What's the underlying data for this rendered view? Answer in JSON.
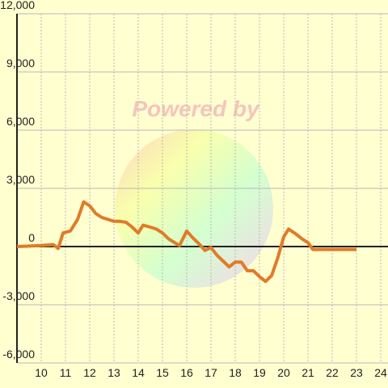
{
  "chart_data": {
    "type": "line",
    "watermark": "Powered by",
    "xlim": [
      9,
      24.3
    ],
    "ylim": [
      -6000,
      12000
    ],
    "xticks": [
      10,
      11,
      12,
      13,
      14,
      15,
      16,
      17,
      18,
      19,
      20,
      21,
      22,
      23,
      24
    ],
    "yticks": [
      {
        "value": -6000,
        "label": "-6,000"
      },
      {
        "value": -3000,
        "label": "-3,000"
      },
      0,
      {
        "value": 3000,
        "label": "3,000"
      },
      {
        "value": 6000,
        "label": "6,000"
      },
      {
        "value": 9000,
        "label": "9,000"
      },
      {
        "value": 12000,
        "label": "12,000"
      }
    ],
    "grid": true,
    "series": [
      {
        "color": "#e07b28",
        "x": [
          9.0,
          10.0,
          10.5,
          10.7,
          10.9,
          11.2,
          11.5,
          11.75,
          12.0,
          12.25,
          12.5,
          12.75,
          13.0,
          13.25,
          13.5,
          13.75,
          14.0,
          14.2,
          14.5,
          14.75,
          15.0,
          15.25,
          15.5,
          15.7,
          16.0,
          16.25,
          16.5,
          16.75,
          17.0,
          17.25,
          17.5,
          17.75,
          18.0,
          18.25,
          18.5,
          18.75,
          19.0,
          19.25,
          19.5,
          19.75,
          20.0,
          20.2,
          20.5,
          20.75,
          21.0,
          21.2,
          23.0
        ],
        "values": [
          0,
          50,
          100,
          -100,
          700,
          800,
          1400,
          2300,
          2100,
          1700,
          1500,
          1400,
          1300,
          1300,
          1250,
          1000,
          700,
          1100,
          1000,
          900,
          700,
          400,
          200,
          50,
          800,
          450,
          150,
          -200,
          -50,
          -450,
          -750,
          -1050,
          -800,
          -800,
          -1250,
          -1250,
          -1550,
          -1800,
          -1500,
          -600,
          500,
          900,
          650,
          400,
          200,
          -150,
          -150
        ]
      }
    ]
  }
}
